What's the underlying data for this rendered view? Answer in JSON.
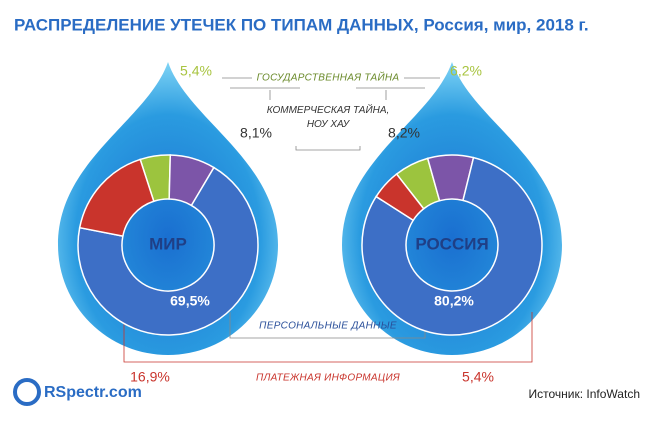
{
  "title": "РАСПРЕДЕЛЕНИЕ УТЕЧЕК ПО ТИПАМ ДАННЫХ, Россия, мир, 2018 г.",
  "categories": [
    "ГОСУДАРСТВЕННАЯ ТАЙНА",
    "КОММЕРЧЕСКАЯ ТАЙНА, НОУ ХАУ",
    "ПЕРСОНАЛЬНЫЕ ДАННЫЕ",
    "ПЛАТЕЖНАЯ ИНФОРМАЦИЯ"
  ],
  "colors": [
    "#9cc43e",
    "#7c55a8",
    "#3d6fc6",
    "#c9342c"
  ],
  "chart_data": [
    {
      "type": "donut",
      "title": "МИР",
      "values": [
        5.4,
        8.1,
        69.5,
        16.9
      ],
      "value_labels": [
        "5,4%",
        "8,1%",
        "69,5%",
        "16,9%"
      ]
    },
    {
      "type": "donut",
      "title": "РОССИЯ",
      "values": [
        6.2,
        8.2,
        80.2,
        5.4
      ],
      "value_labels": [
        "6,2%",
        "8,2%",
        "80,2%",
        "5,4%"
      ]
    }
  ],
  "logo": "RSpectr.com",
  "source": "Источник: InfoWatch"
}
